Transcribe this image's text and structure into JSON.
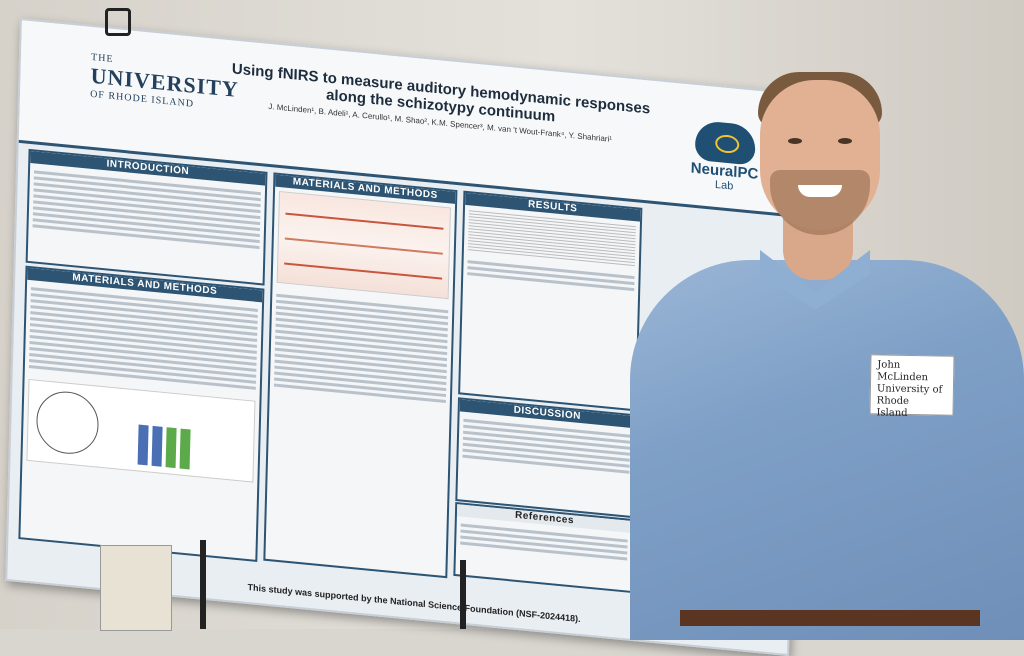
{
  "poster": {
    "university_the": "THE",
    "university_name": "UNIVERSITY",
    "university_state": "OF RHODE ISLAND",
    "title": "Using fNIRS to measure auditory hemodynamic responses along the schizotypy continuum",
    "authors": "J. McLinden¹, B. Adeli¹, A. Cerullo¹, M. Shao², K.M. Spencer³, M. van 't Wout-Frank⁴, Y. Shahriari¹",
    "lab_name": "NeuralPC",
    "lab_sub": "Lab",
    "sections": {
      "introduction": "INTRODUCTION",
      "methods_left": "MATERIALS AND METHODS",
      "methods_mid": "MATERIALS AND METHODS",
      "results": "RESULTS",
      "discussion": "DISCUSSION",
      "references": "References"
    },
    "funding": "This study was supported by the National Science Foundation (NSF-2024418)."
  },
  "name_tag": {
    "line1": "John McLinden",
    "line2": "University of Rhode",
    "line3": "Island"
  }
}
